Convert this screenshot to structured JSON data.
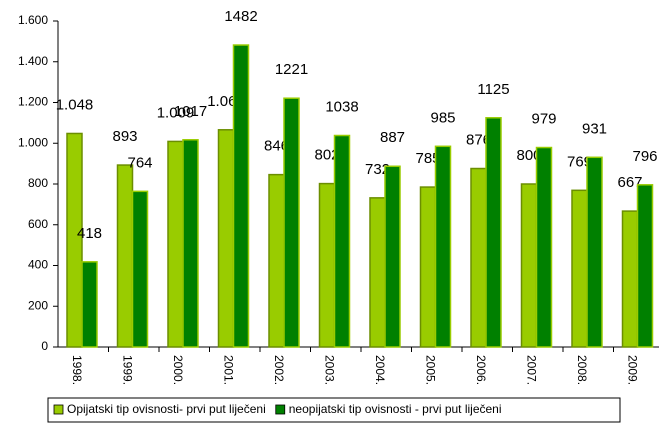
{
  "chart_data": {
    "type": "bar",
    "categories": [
      "1998.",
      "1999.",
      "2000.",
      "2001.",
      "2002.",
      "2003.",
      "2004.",
      "2005.",
      "2006.",
      "2007.",
      "2008.",
      "2009."
    ],
    "series": [
      {
        "name": "Opijatski tip ovisnosti- prvi put liječeni",
        "color": "#99cc00",
        "values": [
          1048,
          893,
          1009,
          1066,
          846,
          802,
          732,
          785,
          876,
          800,
          769,
          667
        ],
        "value_labels": [
          "1.048",
          "893",
          "1.009",
          "1.066",
          "846",
          "802",
          "732",
          "785",
          "876",
          "800",
          "769",
          "667"
        ]
      },
      {
        "name": "neopijatski tip ovisnosti - prvi put liječeni",
        "color": "#008000",
        "values": [
          418,
          764,
          1017,
          1482,
          1221,
          1038,
          887,
          985,
          1125,
          979,
          931,
          796
        ]
      }
    ],
    "ylim": [
      0,
      1600
    ],
    "yticks": [
      0,
      200,
      400,
      600,
      800,
      {
        "value": 1000,
        "label": "1.000"
      },
      {
        "value": 1200,
        "label": "1.200"
      },
      {
        "value": 1400,
        "label": "1.400"
      },
      {
        "value": 1600,
        "label": "1.600"
      }
    ],
    "legend": "bottom"
  }
}
